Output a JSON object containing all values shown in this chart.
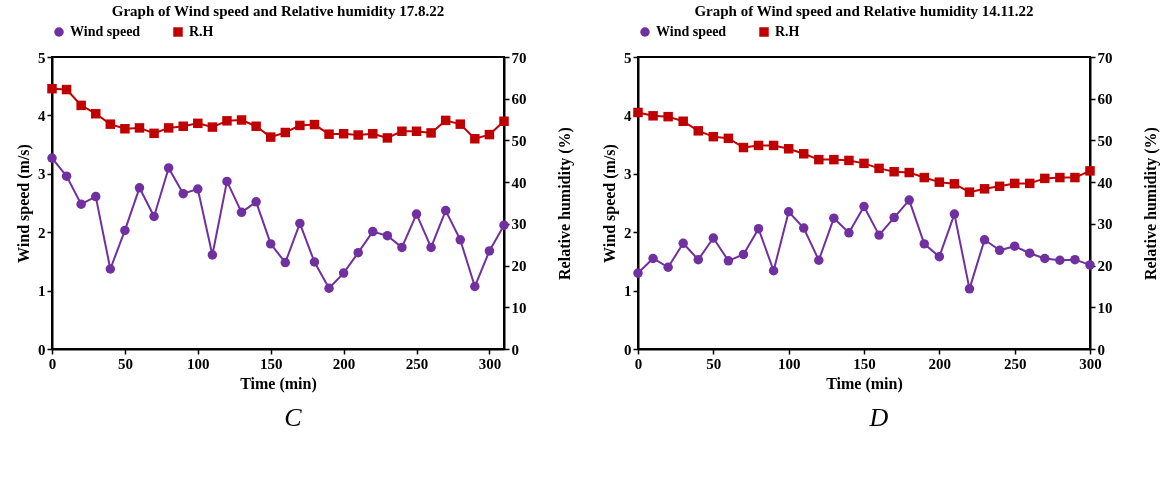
{
  "chart_data": [
    {
      "type": "line",
      "title": "Graph of Wind speed and Relative humidity 17.8.22",
      "xlabel": "Time (min)",
      "ylabel": "Wind speed (m/s)",
      "y2label": "Relative humidity (%)",
      "x": [
        0,
        10,
        20,
        30,
        40,
        50,
        60,
        70,
        80,
        90,
        100,
        110,
        120,
        130,
        140,
        150,
        160,
        170,
        180,
        190,
        200,
        210,
        220,
        230,
        240,
        250,
        260,
        270,
        280,
        290,
        300,
        310
      ],
      "series": [
        {
          "name": "Wind speed",
          "color": "#7030a0",
          "marker": "circle",
          "values": [
            3.27,
            2.96,
            2.48,
            2.61,
            1.37,
            2.03,
            2.76,
            2.27,
            3.1,
            2.66,
            2.74,
            1.61,
            2.87,
            2.34,
            2.52,
            1.8,
            1.48,
            2.15,
            1.49,
            1.04,
            1.3,
            1.65,
            2.01,
            1.94,
            1.74,
            2.31,
            1.74,
            2.37,
            1.87,
            1.07,
            1.68,
            2.12
          ]
        },
        {
          "name": "R.H",
          "color": "#c00000",
          "marker": "square",
          "axis": "y2",
          "values": [
            62.4,
            62.2,
            58.4,
            56.4,
            53.9,
            52.8,
            53.0,
            51.7,
            53.0,
            53.4,
            54.1,
            53.2,
            54.7,
            54.9,
            53.4,
            50.8,
            51.9,
            53.6,
            53.8,
            51.5,
            51.6,
            51.3,
            51.6,
            50.6,
            52.2,
            52.2,
            51.8,
            54.8,
            53.9,
            50.4,
            51.4,
            54.6
          ]
        }
      ],
      "xlim": [
        0,
        310
      ],
      "xticks": [
        0,
        50,
        100,
        150,
        200,
        250,
        300
      ],
      "ylim": [
        0,
        5
      ],
      "yticks": [
        0,
        1,
        2,
        3,
        4,
        5
      ],
      "y2lim": [
        0,
        70
      ],
      "y2ticks": [
        0,
        10,
        20,
        30,
        40,
        50,
        60,
        70
      ],
      "grid": false,
      "legend": "top",
      "annotations": [
        "C"
      ]
    },
    {
      "type": "line",
      "title": "Graph of Wind speed and Relative humidity 14.11.22",
      "xlabel": "Time (min)",
      "ylabel": "Wind speed (m/s)",
      "y2label": "Relative humidity (%)",
      "x": [
        0,
        10,
        20,
        30,
        40,
        50,
        60,
        70,
        80,
        90,
        100,
        110,
        120,
        130,
        140,
        150,
        160,
        170,
        180,
        190,
        200,
        210,
        220,
        230,
        240,
        250,
        260,
        270,
        280,
        290,
        300
      ],
      "series": [
        {
          "name": "Wind speed",
          "color": "#7030a0",
          "marker": "circle",
          "values": [
            1.3,
            1.55,
            1.4,
            1.81,
            1.53,
            1.9,
            1.51,
            1.62,
            2.06,
            1.34,
            2.35,
            2.07,
            1.52,
            2.24,
            1.99,
            2.44,
            1.95,
            2.25,
            2.55,
            1.8,
            1.58,
            2.31,
            1.03,
            1.87,
            1.69,
            1.76,
            1.64,
            1.55,
            1.52,
            1.53,
            1.44
          ]
        },
        {
          "name": "R.H",
          "color": "#c00000",
          "marker": "square",
          "axis": "y2",
          "values": [
            56.7,
            55.9,
            55.7,
            54.6,
            52.3,
            50.9,
            50.5,
            48.3,
            48.8,
            48.8,
            48.0,
            46.8,
            45.4,
            45.4,
            45.2,
            44.5,
            43.3,
            42.5,
            42.3,
            41.1,
            40.0,
            39.6,
            37.6,
            38.4,
            39.0,
            39.7,
            39.7,
            40.9,
            41.1,
            41.1,
            42.7
          ]
        }
      ],
      "xlim": [
        0,
        300
      ],
      "xticks": [
        0,
        50,
        100,
        150,
        200,
        250,
        300
      ],
      "ylim": [
        0,
        5
      ],
      "yticks": [
        0,
        1,
        2,
        3,
        4,
        5
      ],
      "y2lim": [
        0,
        70
      ],
      "y2ticks": [
        0,
        10,
        20,
        30,
        40,
        50,
        60,
        70
      ],
      "grid": false,
      "legend": "top",
      "annotations": [
        "D"
      ]
    }
  ]
}
